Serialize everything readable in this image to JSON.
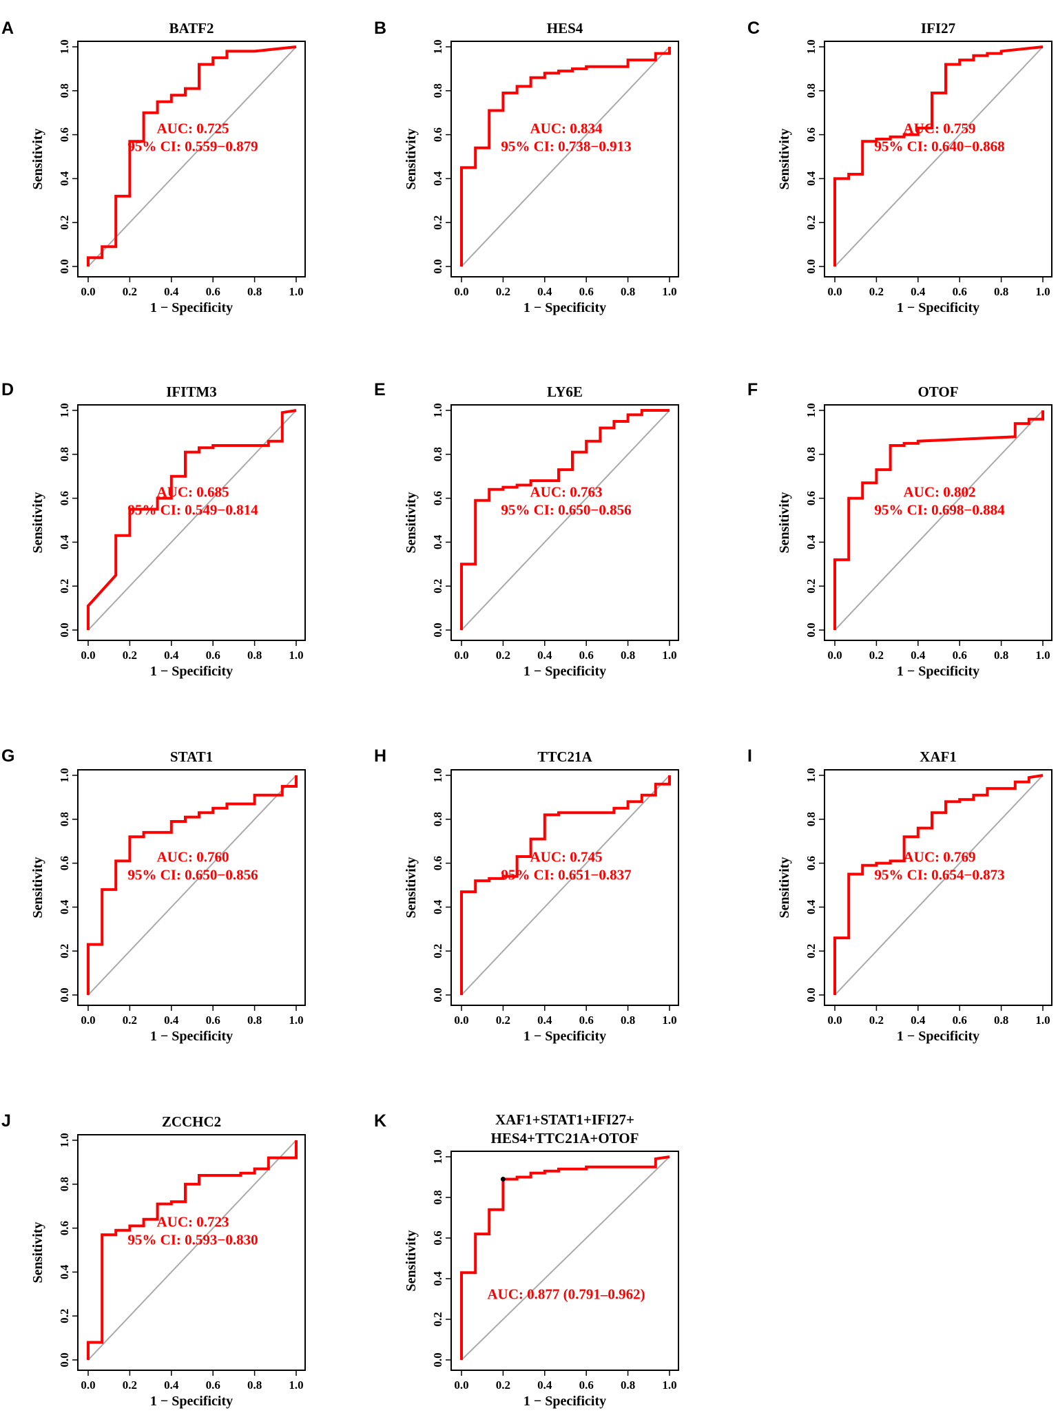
{
  "colors": {
    "roc": "#ff0000",
    "diagonal": "#aaaaaa",
    "frame": "#000000",
    "text_red": "#ff0000",
    "marker": "#000000"
  },
  "chart_data": [
    {
      "type": "line",
      "panel": "A",
      "title": [
        "BATF2"
      ],
      "xlabel": "1 − Specificity",
      "ylabel": "Sensitivity",
      "xlim": [
        0,
        1
      ],
      "ylim": [
        0,
        1
      ],
      "xticks": [
        "0.0",
        "0.2",
        "0.4",
        "0.6",
        "0.8",
        "1.0"
      ],
      "yticks": [
        "0.0",
        "0.2",
        "0.4",
        "0.6",
        "0.8",
        "1.0"
      ],
      "auc_text": [
        "AUC: 0.725",
        "95% CI: 0.559−0.879"
      ],
      "x": [
        0,
        0,
        0.067,
        0.067,
        0.133,
        0.133,
        0.2,
        0.2,
        0.267,
        0.267,
        0.333,
        0.333,
        0.4,
        0.4,
        0.467,
        0.467,
        0.533,
        0.533,
        0.6,
        0.6,
        0.667,
        0.667,
        0.8,
        1.0
      ],
      "y": [
        0,
        0.04,
        0.04,
        0.09,
        0.09,
        0.32,
        0.32,
        0.57,
        0.57,
        0.7,
        0.7,
        0.75,
        0.75,
        0.78,
        0.78,
        0.81,
        0.81,
        0.92,
        0.92,
        0.95,
        0.95,
        0.98,
        0.98,
        1.0
      ]
    },
    {
      "type": "line",
      "panel": "B",
      "title": [
        "HES4"
      ],
      "xlabel": "1 − Specificity",
      "ylabel": "Sensitivity",
      "xlim": [
        0,
        1
      ],
      "ylim": [
        0,
        1
      ],
      "xticks": [
        "0.0",
        "0.2",
        "0.4",
        "0.6",
        "0.8",
        "1.0"
      ],
      "yticks": [
        "0.0",
        "0.2",
        "0.4",
        "0.6",
        "0.8",
        "1.0"
      ],
      "auc_text": [
        "AUC: 0.834",
        "95% CI: 0.738−0.913"
      ],
      "x": [
        0,
        0,
        0.067,
        0.067,
        0.133,
        0.133,
        0.2,
        0.2,
        0.267,
        0.267,
        0.333,
        0.333,
        0.4,
        0.4,
        0.467,
        0.467,
        0.533,
        0.533,
        0.6,
        0.6,
        0.8,
        0.8,
        0.933,
        0.933,
        1.0,
        1.0
      ],
      "y": [
        0,
        0.45,
        0.45,
        0.54,
        0.54,
        0.71,
        0.71,
        0.79,
        0.79,
        0.82,
        0.82,
        0.86,
        0.86,
        0.88,
        0.88,
        0.89,
        0.89,
        0.9,
        0.9,
        0.91,
        0.91,
        0.94,
        0.94,
        0.97,
        0.97,
        1.0
      ]
    },
    {
      "type": "line",
      "panel": "C",
      "title": [
        "IFI27"
      ],
      "xlabel": "1 − Specificity",
      "ylabel": "Sensitivity",
      "xlim": [
        0,
        1
      ],
      "ylim": [
        0,
        1
      ],
      "xticks": [
        "0.0",
        "0.2",
        "0.4",
        "0.6",
        "0.8",
        "1.0"
      ],
      "yticks": [
        "0.0",
        "0.2",
        "0.4",
        "0.6",
        "0.8",
        "1.0"
      ],
      "auc_text": [
        "AUC: 0.759",
        "95% CI: 0.640−0.868"
      ],
      "x": [
        0,
        0,
        0.067,
        0.067,
        0.133,
        0.133,
        0.2,
        0.2,
        0.267,
        0.267,
        0.333,
        0.333,
        0.4,
        0.4,
        0.467,
        0.467,
        0.533,
        0.533,
        0.6,
        0.6,
        0.667,
        0.667,
        0.733,
        0.733,
        0.8,
        0.8,
        1.0
      ],
      "y": [
        0,
        0.4,
        0.4,
        0.42,
        0.42,
        0.57,
        0.57,
        0.58,
        0.58,
        0.59,
        0.59,
        0.6,
        0.6,
        0.63,
        0.63,
        0.79,
        0.79,
        0.92,
        0.92,
        0.94,
        0.94,
        0.96,
        0.96,
        0.97,
        0.97,
        0.98,
        1.0
      ]
    },
    {
      "type": "line",
      "panel": "D",
      "title": [
        "IFITM3"
      ],
      "xlabel": "1 − Specificity",
      "ylabel": "Sensitivity",
      "xlim": [
        0,
        1
      ],
      "ylim": [
        0,
        1
      ],
      "xticks": [
        "0.0",
        "0.2",
        "0.4",
        "0.6",
        "0.8",
        "1.0"
      ],
      "yticks": [
        "0.0",
        "0.2",
        "0.4",
        "0.6",
        "0.8",
        "1.0"
      ],
      "auc_text": [
        "AUC: 0.685",
        "95% CI: 0.549−0.814"
      ],
      "x": [
        0,
        0,
        0.133,
        0.133,
        0.2,
        0.2,
        0.333,
        0.333,
        0.4,
        0.4,
        0.467,
        0.467,
        0.533,
        0.533,
        0.6,
        0.6,
        0.867,
        0.867,
        0.933,
        0.933,
        1.0
      ],
      "y": [
        0,
        0.11,
        0.25,
        0.43,
        0.43,
        0.55,
        0.55,
        0.6,
        0.6,
        0.7,
        0.7,
        0.81,
        0.81,
        0.83,
        0.83,
        0.84,
        0.84,
        0.86,
        0.86,
        0.99,
        1.0
      ]
    },
    {
      "type": "line",
      "panel": "E",
      "title": [
        "LY6E"
      ],
      "xlabel": "1 − Specificity",
      "ylabel": "Sensitivity",
      "xlim": [
        0,
        1
      ],
      "ylim": [
        0,
        1
      ],
      "xticks": [
        "0.0",
        "0.2",
        "0.4",
        "0.6",
        "0.8",
        "1.0"
      ],
      "yticks": [
        "0.0",
        "0.2",
        "0.4",
        "0.6",
        "0.8",
        "1.0"
      ],
      "auc_text": [
        "AUC: 0.763",
        "95% CI: 0.650−0.856"
      ],
      "x": [
        0,
        0,
        0.067,
        0.067,
        0.133,
        0.133,
        0.2,
        0.2,
        0.267,
        0.267,
        0.333,
        0.333,
        0.467,
        0.467,
        0.533,
        0.533,
        0.6,
        0.6,
        0.667,
        0.667,
        0.733,
        0.733,
        0.8,
        0.8,
        0.867,
        0.867,
        1.0
      ],
      "y": [
        0,
        0.3,
        0.3,
        0.59,
        0.59,
        0.64,
        0.64,
        0.65,
        0.65,
        0.66,
        0.66,
        0.68,
        0.68,
        0.73,
        0.73,
        0.81,
        0.81,
        0.86,
        0.86,
        0.92,
        0.92,
        0.95,
        0.95,
        0.98,
        0.98,
        1.0,
        1.0
      ]
    },
    {
      "type": "line",
      "panel": "F",
      "title": [
        "OTOF"
      ],
      "xlabel": "1 − Specificity",
      "ylabel": "Sensitivity",
      "xlim": [
        0,
        1
      ],
      "ylim": [
        0,
        1
      ],
      "xticks": [
        "0.0",
        "0.2",
        "0.4",
        "0.6",
        "0.8",
        "1.0"
      ],
      "yticks": [
        "0.0",
        "0.2",
        "0.4",
        "0.6",
        "0.8",
        "1.0"
      ],
      "auc_text": [
        "AUC: 0.802",
        "95% CI: 0.698−0.884"
      ],
      "x": [
        0,
        0,
        0.067,
        0.067,
        0.133,
        0.133,
        0.2,
        0.2,
        0.267,
        0.267,
        0.333,
        0.333,
        0.4,
        0.4,
        0.867,
        0.867,
        0.933,
        0.933,
        1.0,
        1.0
      ],
      "y": [
        0,
        0.32,
        0.32,
        0.6,
        0.6,
        0.67,
        0.67,
        0.73,
        0.73,
        0.84,
        0.84,
        0.85,
        0.85,
        0.86,
        0.88,
        0.94,
        0.94,
        0.96,
        0.96,
        1.0
      ]
    },
    {
      "type": "line",
      "panel": "G",
      "title": [
        "STAT1"
      ],
      "xlabel": "1 − Specificity",
      "ylabel": "Sensitivity",
      "xlim": [
        0,
        1
      ],
      "ylim": [
        0,
        1
      ],
      "xticks": [
        "0.0",
        "0.2",
        "0.4",
        "0.6",
        "0.8",
        "1.0"
      ],
      "yticks": [
        "0.0",
        "0.2",
        "0.4",
        "0.6",
        "0.8",
        "1.0"
      ],
      "auc_text": [
        "AUC: 0.760",
        "95% CI: 0.650−0.856"
      ],
      "x": [
        0,
        0,
        0.067,
        0.067,
        0.133,
        0.133,
        0.2,
        0.2,
        0.267,
        0.267,
        0.4,
        0.4,
        0.467,
        0.467,
        0.533,
        0.533,
        0.6,
        0.6,
        0.667,
        0.667,
        0.8,
        0.8,
        0.933,
        0.933,
        1.0,
        1.0
      ],
      "y": [
        0,
        0.23,
        0.23,
        0.48,
        0.48,
        0.61,
        0.61,
        0.72,
        0.72,
        0.74,
        0.74,
        0.79,
        0.79,
        0.81,
        0.81,
        0.83,
        0.83,
        0.85,
        0.85,
        0.87,
        0.87,
        0.91,
        0.91,
        0.95,
        0.95,
        1.0
      ]
    },
    {
      "type": "line",
      "panel": "H",
      "title": [
        "TTC21A"
      ],
      "xlabel": "1 − Specificity",
      "ylabel": "Sensitivity",
      "xlim": [
        0,
        1
      ],
      "ylim": [
        0,
        1
      ],
      "xticks": [
        "0.0",
        "0.2",
        "0.4",
        "0.6",
        "0.8",
        "1.0"
      ],
      "yticks": [
        "0.0",
        "0.2",
        "0.4",
        "0.6",
        "0.8",
        "1.0"
      ],
      "auc_text": [
        "AUC: 0.745",
        "95% CI: 0.651−0.837"
      ],
      "x": [
        0,
        0,
        0.067,
        0.067,
        0.133,
        0.133,
        0.2,
        0.2,
        0.267,
        0.267,
        0.333,
        0.333,
        0.4,
        0.4,
        0.467,
        0.467,
        0.733,
        0.733,
        0.8,
        0.8,
        0.867,
        0.867,
        0.933,
        0.933,
        1.0,
        1.0
      ],
      "y": [
        0,
        0.47,
        0.47,
        0.52,
        0.52,
        0.53,
        0.53,
        0.54,
        0.54,
        0.63,
        0.63,
        0.71,
        0.71,
        0.82,
        0.82,
        0.83,
        0.83,
        0.85,
        0.85,
        0.88,
        0.88,
        0.91,
        0.91,
        0.96,
        0.96,
        1.0
      ]
    },
    {
      "type": "line",
      "panel": "I",
      "title": [
        "XAF1"
      ],
      "xlabel": "1 − Specificity",
      "ylabel": "Sensitivity",
      "xlim": [
        0,
        1
      ],
      "ylim": [
        0,
        1
      ],
      "xticks": [
        "0.0",
        "0.2",
        "0.4",
        "0.6",
        "0.8",
        "1.0"
      ],
      "yticks": [
        "0.0",
        "0.2",
        "0.4",
        "0.6",
        "0.8",
        "1.0"
      ],
      "auc_text": [
        "AUC: 0.769",
        "95% CI: 0.654−0.873"
      ],
      "x": [
        0,
        0,
        0.067,
        0.067,
        0.133,
        0.133,
        0.2,
        0.2,
        0.267,
        0.267,
        0.333,
        0.333,
        0.4,
        0.4,
        0.467,
        0.467,
        0.533,
        0.533,
        0.6,
        0.6,
        0.667,
        0.667,
        0.733,
        0.733,
        0.867,
        0.867,
        0.933,
        0.933,
        1.0
      ],
      "y": [
        0,
        0.26,
        0.26,
        0.55,
        0.55,
        0.59,
        0.59,
        0.6,
        0.6,
        0.61,
        0.61,
        0.72,
        0.72,
        0.76,
        0.76,
        0.83,
        0.83,
        0.88,
        0.88,
        0.89,
        0.89,
        0.91,
        0.91,
        0.94,
        0.94,
        0.97,
        0.97,
        0.99,
        1.0
      ]
    },
    {
      "type": "line",
      "panel": "J",
      "title": [
        "ZCCHC2"
      ],
      "xlabel": "1 − Specificity",
      "ylabel": "Sensitivity",
      "xlim": [
        0,
        1
      ],
      "ylim": [
        0,
        1
      ],
      "xticks": [
        "0.0",
        "0.2",
        "0.4",
        "0.6",
        "0.8",
        "1.0"
      ],
      "yticks": [
        "0.0",
        "0.2",
        "0.4",
        "0.6",
        "0.8",
        "1.0"
      ],
      "auc_text": [
        "AUC: 0.723",
        "95% CI: 0.593−0.830"
      ],
      "x": [
        0,
        0,
        0.067,
        0.067,
        0.133,
        0.133,
        0.2,
        0.2,
        0.267,
        0.267,
        0.333,
        0.333,
        0.4,
        0.4,
        0.467,
        0.467,
        0.533,
        0.533,
        0.733,
        0.733,
        0.8,
        0.8,
        0.867,
        0.867,
        1.0,
        1.0
      ],
      "y": [
        0,
        0.08,
        0.08,
        0.57,
        0.57,
        0.59,
        0.59,
        0.61,
        0.61,
        0.64,
        0.64,
        0.71,
        0.71,
        0.72,
        0.72,
        0.8,
        0.8,
        0.84,
        0.84,
        0.85,
        0.85,
        0.87,
        0.87,
        0.92,
        0.92,
        1.0
      ]
    },
    {
      "type": "line",
      "panel": "K",
      "title": [
        "XAF1+STAT1+IFI27+",
        "HES4+TTC21A+OTOF"
      ],
      "xlabel": "1 − Specificity",
      "ylabel": "Sensitivity",
      "xlim": [
        0,
        1
      ],
      "ylim": [
        0,
        1
      ],
      "xticks": [
        "0.0",
        "0.2",
        "0.4",
        "0.6",
        "0.8",
        "1.0"
      ],
      "yticks": [
        "0.0",
        "0.2",
        "0.4",
        "0.6",
        "0.8",
        "1.0"
      ],
      "auc_text": [
        "AUC: 0.877 (0.791–0.962)"
      ],
      "best_point": [
        0.2,
        0.89
      ],
      "x": [
        0,
        0,
        0.067,
        0.067,
        0.133,
        0.133,
        0.2,
        0.2,
        0.267,
        0.267,
        0.333,
        0.333,
        0.4,
        0.4,
        0.467,
        0.467,
        0.6,
        0.6,
        0.933,
        0.933,
        1.0
      ],
      "y": [
        0,
        0.43,
        0.43,
        0.62,
        0.62,
        0.74,
        0.74,
        0.89,
        0.89,
        0.9,
        0.9,
        0.92,
        0.92,
        0.93,
        0.93,
        0.94,
        0.94,
        0.95,
        0.95,
        0.99,
        1.0
      ]
    }
  ]
}
